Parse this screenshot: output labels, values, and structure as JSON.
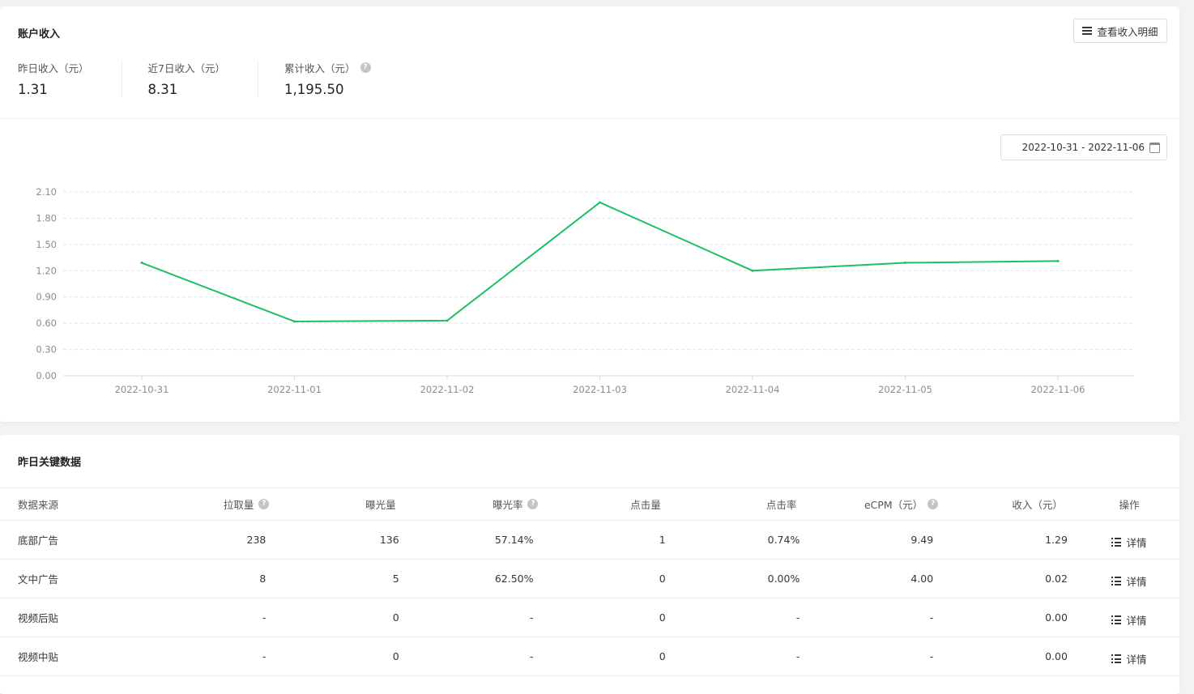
{
  "income": {
    "title": "账户收入",
    "detail_button": "查看收入明细",
    "stats": [
      {
        "label": "昨日收入（元）",
        "value": "1.31",
        "help": false
      },
      {
        "label": "近7日收入（元）",
        "value": "8.31",
        "help": false
      },
      {
        "label": "累计收入（元）",
        "value": "1,195.50",
        "help": true
      }
    ],
    "date_range": "2022-10-31 - 2022-11-06",
    "icons": {
      "detail": "menu-icon",
      "date": "calendar-icon",
      "help": "question-circle-icon"
    }
  },
  "colors": {
    "line": "#1cbf63",
    "grid": "#e3e3e3",
    "axis": "#d9d9d9"
  },
  "chart_data": {
    "type": "line",
    "x": [
      "2022-10-31",
      "2022-11-01",
      "2022-11-02",
      "2022-11-03",
      "2022-11-04",
      "2022-11-05",
      "2022-11-06"
    ],
    "series": [
      {
        "values": [
          1.29,
          0.62,
          0.63,
          1.98,
          1.2,
          1.29,
          1.31
        ]
      }
    ],
    "yticks": [
      "0.00",
      "0.30",
      "0.60",
      "0.90",
      "1.20",
      "1.50",
      "1.80",
      "2.10"
    ],
    "ylim": [
      0,
      2.1
    ],
    "grid": true,
    "legend": "none"
  },
  "key_data": {
    "title": "昨日关键数据",
    "columns": [
      "数据来源",
      "拉取量",
      "曝光量",
      "曝光率",
      "点击量",
      "点击率",
      "eCPM（元）",
      "收入（元）",
      "操作"
    ],
    "help_columns": [
      1,
      3,
      6
    ],
    "rows": [
      [
        "底部广告",
        "238",
        "136",
        "57.14%",
        "1",
        "0.74%",
        "9.49",
        "1.29"
      ],
      [
        "文中广告",
        "8",
        "5",
        "62.50%",
        "0",
        "0.00%",
        "4.00",
        "0.02"
      ],
      [
        "视频后贴",
        "-",
        "0",
        "-",
        "0",
        "-",
        "-",
        "0.00"
      ],
      [
        "视频中贴",
        "-",
        "0",
        "-",
        "0",
        "-",
        "-",
        "0.00"
      ]
    ],
    "action_label": "详情"
  }
}
